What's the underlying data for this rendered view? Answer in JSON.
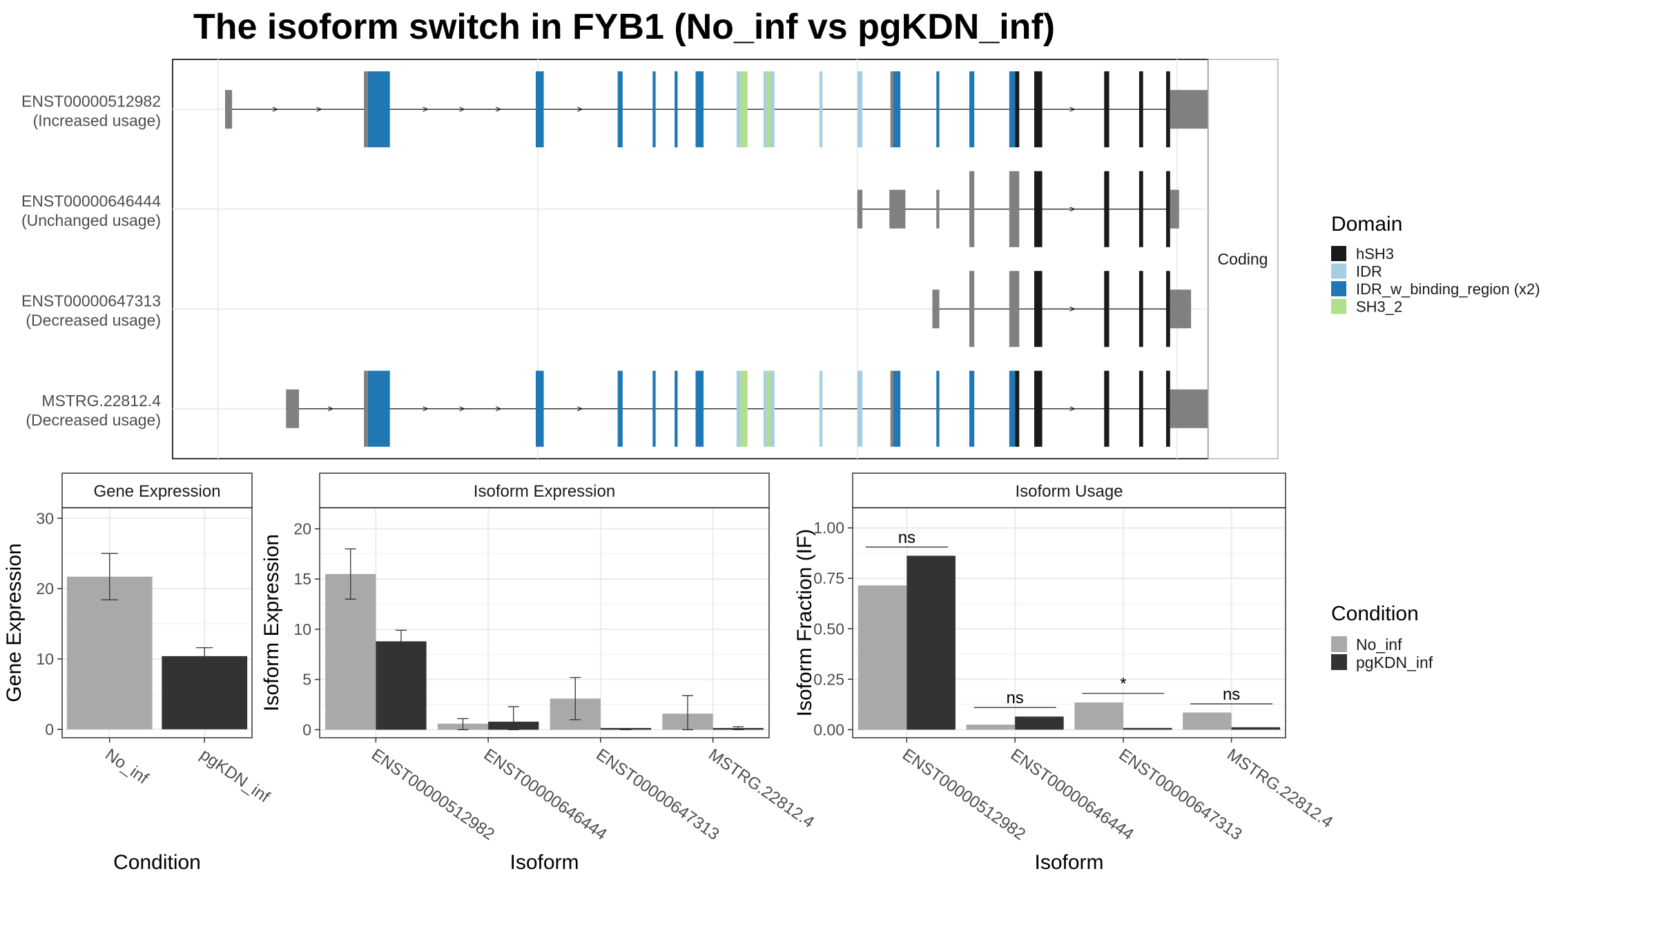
{
  "title": "The isoform switch in FYB1 (No_inf vs pgKDN_inf)",
  "colors": {
    "bar_no_inf": "#a9a9a9",
    "bar_pgkdn_inf": "#333333",
    "exon_noncoding": "#808080",
    "hSH3": "#1a1a1a",
    "IDR": "#a6cee3",
    "IDR_w_binding_region (x2)": "#1f78b4",
    "SH3_2": "#b2df8a"
  },
  "structure": {
    "facet_label": "Coding",
    "legend_title": "Domain",
    "legend_entries": [
      {
        "name": "hSH3",
        "color": "#1a1a1a"
      },
      {
        "name": "IDR",
        "color": "#a6cee3"
      },
      {
        "name": "IDR_w_binding_region (x2)",
        "color": "#1f78b4"
      },
      {
        "name": "SH3_2",
        "color": "#b2df8a"
      }
    ],
    "isoforms": [
      {
        "id": "ENST00000512982",
        "usage": "(Increased usage)",
        "exons": [
          {
            "s": 0.047,
            "e": 0.054,
            "t": "nc",
            "h": "thin"
          },
          {
            "s": 0.186,
            "e": 0.19,
            "t": "nc",
            "h": "thick"
          },
          {
            "s": 0.19,
            "e": 0.212,
            "t": "IDR_w_binding_region (x2)",
            "h": "thick"
          },
          {
            "s": 0.358,
            "e": 0.366,
            "t": "IDR_w_binding_region (x2)",
            "h": "thick"
          },
          {
            "s": 0.44,
            "e": 0.445,
            "t": "IDR_w_binding_region (x2)",
            "h": "thick"
          },
          {
            "s": 0.475,
            "e": 0.478,
            "t": "IDR_w_binding_region (x2)",
            "h": "thick"
          },
          {
            "s": 0.497,
            "e": 0.5,
            "t": "IDR_w_binding_region (x2)",
            "h": "thick"
          },
          {
            "s": 0.518,
            "e": 0.526,
            "t": "IDR_w_binding_region (x2)",
            "h": "thick"
          },
          {
            "s": 0.559,
            "e": 0.563,
            "t": "IDR",
            "h": "thick"
          },
          {
            "s": 0.563,
            "e": 0.57,
            "t": "SH3_2",
            "h": "thick"
          },
          {
            "s": 0.586,
            "e": 0.589,
            "t": "IDR",
            "h": "thick"
          },
          {
            "s": 0.589,
            "e": 0.593,
            "t": "SH3_2",
            "h": "thick"
          },
          {
            "s": 0.593,
            "e": 0.597,
            "t": "IDR",
            "h": "thick"
          },
          {
            "s": 0.642,
            "e": 0.645,
            "t": "IDR",
            "h": "thick"
          },
          {
            "s": 0.68,
            "e": 0.685,
            "t": "IDR",
            "h": "thick"
          },
          {
            "s": 0.713,
            "e": 0.716,
            "t": "nc",
            "h": "thick"
          },
          {
            "s": 0.716,
            "e": 0.723,
            "t": "IDR_w_binding_region (x2)",
            "h": "thick"
          },
          {
            "s": 0.759,
            "e": 0.762,
            "t": "IDR_w_binding_region (x2)",
            "h": "thick"
          },
          {
            "s": 0.792,
            "e": 0.797,
            "t": "IDR_w_binding_region (x2)",
            "h": "thick"
          },
          {
            "s": 0.832,
            "e": 0.838,
            "t": "IDR_w_binding_region (x2)",
            "h": "thick"
          },
          {
            "s": 0.838,
            "e": 0.842,
            "t": "hSH3",
            "h": "thick"
          },
          {
            "s": 0.857,
            "e": 0.865,
            "t": "hSH3",
            "h": "thick"
          },
          {
            "s": 0.927,
            "e": 0.932,
            "t": "hSH3",
            "h": "thick"
          },
          {
            "s": 0.962,
            "e": 0.966,
            "t": "hSH3",
            "h": "thick"
          },
          {
            "s": 0.989,
            "e": 0.993,
            "t": "hSH3",
            "h": "thick"
          },
          {
            "s": 0.993,
            "e": 1.041,
            "t": "nc",
            "h": "thin"
          }
        ]
      },
      {
        "id": "ENST00000646444",
        "usage": "(Unchanged usage)",
        "exons": [
          {
            "s": 0.68,
            "e": 0.685,
            "t": "nc",
            "h": "thin"
          },
          {
            "s": 0.712,
            "e": 0.728,
            "t": "nc",
            "h": "thin"
          },
          {
            "s": 0.759,
            "e": 0.762,
            "t": "nc",
            "h": "thin"
          },
          {
            "s": 0.792,
            "e": 0.797,
            "t": "nc",
            "h": "thick"
          },
          {
            "s": 0.832,
            "e": 0.842,
            "t": "nc",
            "h": "thick"
          },
          {
            "s": 0.857,
            "e": 0.865,
            "t": "hSH3",
            "h": "thick"
          },
          {
            "s": 0.927,
            "e": 0.932,
            "t": "hSH3",
            "h": "thick"
          },
          {
            "s": 0.962,
            "e": 0.966,
            "t": "hSH3",
            "h": "thick"
          },
          {
            "s": 0.989,
            "e": 0.993,
            "t": "hSH3",
            "h": "thick"
          },
          {
            "s": 0.993,
            "e": 1.002,
            "t": "nc",
            "h": "thin"
          }
        ]
      },
      {
        "id": "ENST00000647313",
        "usage": "(Decreased usage)",
        "exons": [
          {
            "s": 0.755,
            "e": 0.762,
            "t": "nc",
            "h": "thin"
          },
          {
            "s": 0.792,
            "e": 0.797,
            "t": "nc",
            "h": "thick"
          },
          {
            "s": 0.832,
            "e": 0.842,
            "t": "nc",
            "h": "thick"
          },
          {
            "s": 0.857,
            "e": 0.865,
            "t": "hSH3",
            "h": "thick"
          },
          {
            "s": 0.927,
            "e": 0.932,
            "t": "hSH3",
            "h": "thick"
          },
          {
            "s": 0.962,
            "e": 0.966,
            "t": "hSH3",
            "h": "thick"
          },
          {
            "s": 0.989,
            "e": 0.993,
            "t": "hSH3",
            "h": "thick"
          },
          {
            "s": 0.993,
            "e": 1.014,
            "t": "nc",
            "h": "thin"
          }
        ]
      },
      {
        "id": "MSTRG.22812.4",
        "usage": "(Decreased usage)",
        "exons": [
          {
            "s": 0.108,
            "e": 0.121,
            "t": "nc",
            "h": "thin"
          },
          {
            "s": 0.186,
            "e": 0.19,
            "t": "nc",
            "h": "thick"
          },
          {
            "s": 0.19,
            "e": 0.212,
            "t": "IDR_w_binding_region (x2)",
            "h": "thick"
          },
          {
            "s": 0.358,
            "e": 0.366,
            "t": "IDR_w_binding_region (x2)",
            "h": "thick"
          },
          {
            "s": 0.44,
            "e": 0.445,
            "t": "IDR_w_binding_region (x2)",
            "h": "thick"
          },
          {
            "s": 0.475,
            "e": 0.478,
            "t": "IDR_w_binding_region (x2)",
            "h": "thick"
          },
          {
            "s": 0.497,
            "e": 0.5,
            "t": "IDR_w_binding_region (x2)",
            "h": "thick"
          },
          {
            "s": 0.518,
            "e": 0.526,
            "t": "IDR_w_binding_region (x2)",
            "h": "thick"
          },
          {
            "s": 0.559,
            "e": 0.563,
            "t": "IDR",
            "h": "thick"
          },
          {
            "s": 0.563,
            "e": 0.57,
            "t": "SH3_2",
            "h": "thick"
          },
          {
            "s": 0.586,
            "e": 0.589,
            "t": "IDR",
            "h": "thick"
          },
          {
            "s": 0.589,
            "e": 0.593,
            "t": "SH3_2",
            "h": "thick"
          },
          {
            "s": 0.593,
            "e": 0.597,
            "t": "IDR",
            "h": "thick"
          },
          {
            "s": 0.642,
            "e": 0.645,
            "t": "IDR",
            "h": "thick"
          },
          {
            "s": 0.68,
            "e": 0.685,
            "t": "IDR",
            "h": "thick"
          },
          {
            "s": 0.713,
            "e": 0.716,
            "t": "nc",
            "h": "thick"
          },
          {
            "s": 0.716,
            "e": 0.723,
            "t": "IDR_w_binding_region (x2)",
            "h": "thick"
          },
          {
            "s": 0.759,
            "e": 0.762,
            "t": "IDR_w_binding_region (x2)",
            "h": "thick"
          },
          {
            "s": 0.792,
            "e": 0.797,
            "t": "IDR_w_binding_region (x2)",
            "h": "thick"
          },
          {
            "s": 0.832,
            "e": 0.838,
            "t": "IDR_w_binding_region (x2)",
            "h": "thick"
          },
          {
            "s": 0.838,
            "e": 0.842,
            "t": "hSH3",
            "h": "thick"
          },
          {
            "s": 0.857,
            "e": 0.865,
            "t": "hSH3",
            "h": "thick"
          },
          {
            "s": 0.927,
            "e": 0.932,
            "t": "hSH3",
            "h": "thick"
          },
          {
            "s": 0.962,
            "e": 0.966,
            "t": "hSH3",
            "h": "thick"
          },
          {
            "s": 0.989,
            "e": 0.993,
            "t": "hSH3",
            "h": "thick"
          },
          {
            "s": 0.993,
            "e": 1.04,
            "t": "nc",
            "h": "thin"
          }
        ]
      }
    ]
  },
  "chart_data": [
    {
      "type": "bar",
      "title": "Gene Expression",
      "xlabel": "Condition",
      "ylabel": "Gene Expression",
      "categories": [
        "No_inf",
        "pgKDN_inf"
      ],
      "values": [
        21.7,
        10.4
      ],
      "error": [
        [
          18.4,
          25.0
        ],
        [
          9.1,
          11.6
        ]
      ],
      "ylim": [
        -1.2,
        31.5
      ],
      "yticks": [
        0,
        10,
        20,
        30
      ],
      "ytick_labels": [
        "0",
        "10",
        "20",
        "30"
      ]
    },
    {
      "type": "bar",
      "title": "Isoform Expression",
      "xlabel": "Isoform",
      "ylabel": "Isoform Expression",
      "categories": [
        "ENST00000512982",
        "ENST00000646444",
        "ENST00000647313",
        "MSTRG.22812.4"
      ],
      "series": [
        {
          "name": "No_inf",
          "values": [
            15.5,
            0.6,
            3.1,
            1.6
          ],
          "error": [
            [
              13.0,
              18.0
            ],
            [
              0.0,
              1.1
            ],
            [
              1.0,
              5.2
            ],
            [
              0.0,
              3.4
            ]
          ]
        },
        {
          "name": "pgKDN_inf",
          "values": [
            8.8,
            0.8,
            0.0,
            0.1
          ],
          "error": [
            [
              7.8,
              9.9
            ],
            [
              0.0,
              2.3
            ],
            [
              0.0,
              0.0
            ],
            [
              0.0,
              0.3
            ]
          ]
        }
      ],
      "ylim": [
        -0.8,
        22.1
      ],
      "yticks": [
        0,
        5,
        10,
        15,
        20
      ],
      "ytick_labels": [
        "0",
        "5",
        "10",
        "15",
        "20"
      ]
    },
    {
      "type": "bar",
      "title": "Isoform Usage",
      "xlabel": "Isoform",
      "ylabel": "Isoform Fraction (IF)",
      "categories": [
        "ENST00000512982",
        "ENST00000646444",
        "ENST00000647313",
        "MSTRG.22812.4"
      ],
      "series": [
        {
          "name": "No_inf",
          "values": [
            0.715,
            0.025,
            0.135,
            0.085
          ]
        },
        {
          "name": "pgKDN_inf",
          "values": [
            0.862,
            0.065,
            0.0,
            0.012
          ]
        }
      ],
      "significance": [
        {
          "label": "ns",
          "y": 0.905
        },
        {
          "label": "ns",
          "y": 0.11
        },
        {
          "label": "*",
          "y": 0.18
        },
        {
          "label": "ns",
          "y": 0.128
        }
      ],
      "ylim": [
        -0.04,
        1.1
      ],
      "yticks": [
        0,
        0.25,
        0.5,
        0.75,
        1.0
      ],
      "ytick_labels": [
        "0.00",
        "0.25",
        "0.50",
        "0.75",
        "1.00"
      ]
    }
  ],
  "condition_legend": {
    "title": "Condition",
    "entries": [
      {
        "name": "No_inf",
        "color": "#a9a9a9"
      },
      {
        "name": "pgKDN_inf",
        "color": "#333333"
      }
    ]
  }
}
